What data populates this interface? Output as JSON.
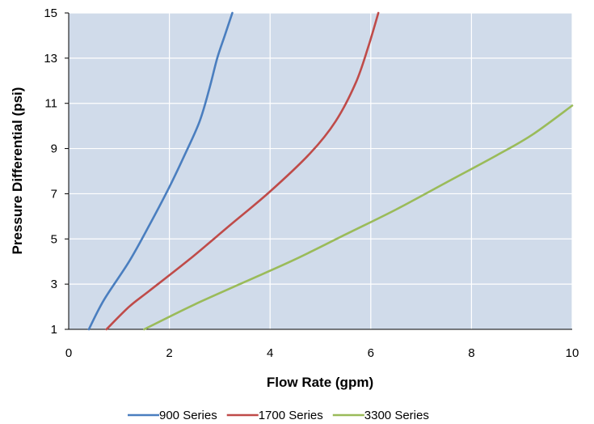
{
  "chart_data": {
    "type": "line",
    "title": "",
    "xlabel": "Flow Rate (gpm)",
    "ylabel": "Pressure Differential (psi)",
    "xlim": [
      0,
      10
    ],
    "ylim": [
      1,
      15
    ],
    "x_ticks": [
      0,
      2,
      4,
      6,
      8,
      10
    ],
    "y_ticks": [
      1,
      3,
      5,
      7,
      9,
      11,
      13,
      15
    ],
    "grid": true,
    "plot_background": "#d0dbea",
    "grid_color": "#ffffff",
    "legend_position": "bottom",
    "series": [
      {
        "name": "900 Series",
        "color": "#4a7ebf",
        "points": [
          [
            0.4,
            1
          ],
          [
            0.7,
            2.3
          ],
          [
            1.2,
            4
          ],
          [
            1.6,
            5.6
          ],
          [
            2.0,
            7.3
          ],
          [
            2.3,
            8.7
          ],
          [
            2.6,
            10.2
          ],
          [
            2.8,
            11.7
          ],
          [
            2.95,
            13
          ],
          [
            3.1,
            14
          ],
          [
            3.25,
            15
          ]
        ]
      },
      {
        "name": "1700 Series",
        "color": "#bf4b49",
        "points": [
          [
            0.75,
            1
          ],
          [
            1.2,
            2
          ],
          [
            1.6,
            2.7
          ],
          [
            2.4,
            4.1
          ],
          [
            3.2,
            5.6
          ],
          [
            4.0,
            7.1
          ],
          [
            4.8,
            8.8
          ],
          [
            5.3,
            10.2
          ],
          [
            5.7,
            11.9
          ],
          [
            5.95,
            13.5
          ],
          [
            6.15,
            15
          ]
        ]
      },
      {
        "name": "3300 Series",
        "color": "#9abb59",
        "points": [
          [
            1.5,
            1
          ],
          [
            2.5,
            2.1
          ],
          [
            3.5,
            3.1
          ],
          [
            4.5,
            4.1
          ],
          [
            5.5,
            5.2
          ],
          [
            6.5,
            6.3
          ],
          [
            7.5,
            7.5
          ],
          [
            8.5,
            8.7
          ],
          [
            9.2,
            9.6
          ],
          [
            10,
            10.9
          ]
        ]
      }
    ]
  }
}
